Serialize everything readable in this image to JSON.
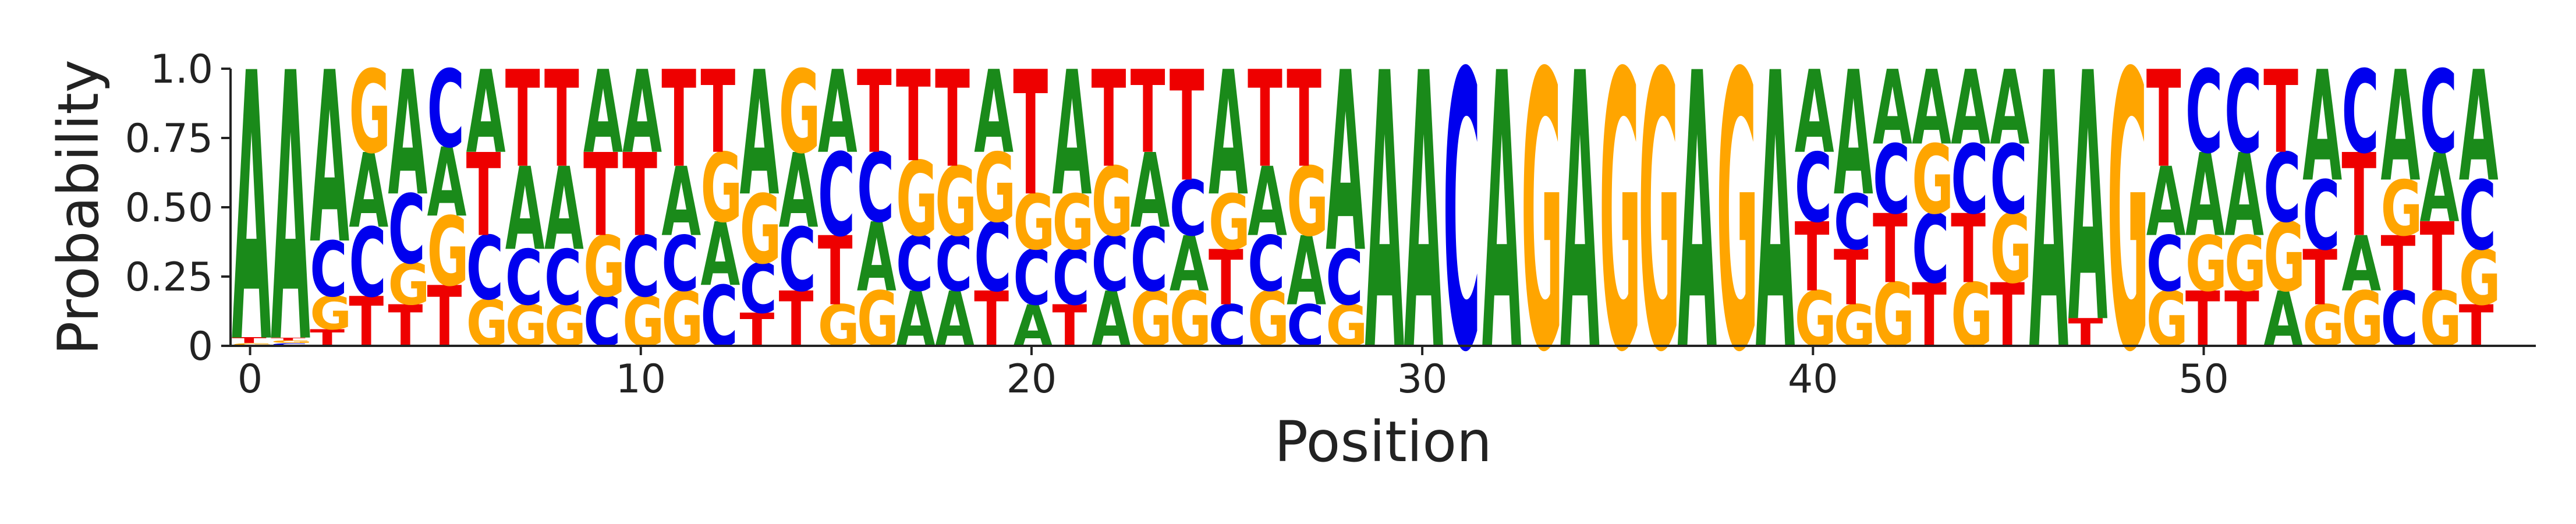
{
  "chart_data": {
    "type": "sequence_logo",
    "xlabel": "Position",
    "ylabel": "Probability",
    "ylim": [
      0,
      1
    ],
    "xlim": [
      -0.5,
      58.5
    ],
    "x_ticks": [
      0,
      10,
      20,
      30,
      40,
      50
    ],
    "y_ticks": [
      0,
      0.25,
      0.5,
      0.75,
      1.0
    ],
    "y_tick_labels": [
      "0",
      "0.25",
      "0.50",
      "0.75",
      "1.0"
    ],
    "colors": {
      "A": "#1a8a1a",
      "C": "#0000ee",
      "G": "#ffa500",
      "T": "#ee0000"
    },
    "positions": [
      {
        "x": 0,
        "probs": {
          "A": 0.97,
          "T": 0.02,
          "G": 0.01,
          "C": 0.0
        }
      },
      {
        "x": 1,
        "probs": {
          "A": 0.97,
          "C": 0.01,
          "G": 0.01,
          "T": 0.01
        }
      },
      {
        "x": 2,
        "probs": {
          "A": 0.62,
          "G": 0.12,
          "C": 0.2,
          "T": 0.06
        }
      },
      {
        "x": 3,
        "probs": {
          "A": 0.27,
          "T": 0.18,
          "G": 0.3,
          "C": 0.25
        }
      },
      {
        "x": 4,
        "probs": {
          "T": 0.15,
          "A": 0.45,
          "G": 0.15,
          "C": 0.25
        }
      },
      {
        "x": 5,
        "probs": {
          "G": 0.25,
          "T": 0.22,
          "C": 0.28,
          "A": 0.25
        }
      },
      {
        "x": 6,
        "probs": {
          "T": 0.3,
          "A": 0.3,
          "G": 0.17,
          "C": 0.23
        }
      },
      {
        "x": 7,
        "probs": {
          "T": 0.35,
          "A": 0.3,
          "C": 0.2,
          "G": 0.15
        }
      },
      {
        "x": 8,
        "probs": {
          "T": 0.35,
          "A": 0.3,
          "C": 0.2,
          "G": 0.15
        }
      },
      {
        "x": 9,
        "probs": {
          "T": 0.3,
          "A": 0.3,
          "G": 0.22,
          "C": 0.18
        }
      },
      {
        "x": 10,
        "probs": {
          "T": 0.3,
          "A": 0.3,
          "C": 0.22,
          "G": 0.18
        }
      },
      {
        "x": 11,
        "probs": {
          "T": 0.35,
          "A": 0.25,
          "G": 0.2,
          "C": 0.2
        }
      },
      {
        "x": 12,
        "probs": {
          "T": 0.3,
          "G": 0.25,
          "A": 0.23,
          "C": 0.22
        }
      },
      {
        "x": 13,
        "probs": {
          "A": 0.45,
          "G": 0.25,
          "T": 0.12,
          "C": 0.18
        }
      },
      {
        "x": 14,
        "probs": {
          "T": 0.2,
          "A": 0.27,
          "G": 0.3,
          "C": 0.23
        }
      },
      {
        "x": 15,
        "probs": {
          "C": 0.3,
          "A": 0.3,
          "G": 0.15,
          "T": 0.25
        }
      },
      {
        "x": 16,
        "probs": {
          "T": 0.3,
          "A": 0.25,
          "G": 0.2,
          "C": 0.25
        }
      },
      {
        "x": 17,
        "probs": {
          "T": 0.33,
          "G": 0.27,
          "A": 0.2,
          "C": 0.2
        }
      },
      {
        "x": 18,
        "probs": {
          "T": 0.35,
          "G": 0.25,
          "A": 0.2,
          "C": 0.2
        }
      },
      {
        "x": 19,
        "probs": {
          "A": 0.3,
          "T": 0.2,
          "C": 0.25,
          "G": 0.25
        }
      },
      {
        "x": 20,
        "probs": {
          "T": 0.45,
          "C": 0.2,
          "A": 0.15,
          "G": 0.2
        }
      },
      {
        "x": 21,
        "probs": {
          "A": 0.45,
          "T": 0.15,
          "C": 0.2,
          "G": 0.2
        }
      },
      {
        "x": 22,
        "probs": {
          "T": 0.35,
          "G": 0.25,
          "A": 0.2,
          "C": 0.2
        }
      },
      {
        "x": 23,
        "probs": {
          "T": 0.3,
          "A": 0.27,
          "C": 0.23,
          "G": 0.2
        }
      },
      {
        "x": 24,
        "probs": {
          "T": 0.4,
          "G": 0.2,
          "A": 0.2,
          "C": 0.2
        }
      },
      {
        "x": 25,
        "probs": {
          "A": 0.45,
          "T": 0.2,
          "G": 0.2,
          "C": 0.15
        }
      },
      {
        "x": 26,
        "probs": {
          "T": 0.35,
          "A": 0.25,
          "G": 0.2,
          "C": 0.2
        }
      },
      {
        "x": 27,
        "probs": {
          "T": 0.35,
          "A": 0.25,
          "G": 0.25,
          "C": 0.15
        }
      },
      {
        "x": 28,
        "probs": {
          "A": 0.65,
          "G": 0.15,
          "C": 0.2,
          "T": 0.0
        }
      },
      {
        "x": 29,
        "probs": {
          "A": 1.0,
          "C": 0.0,
          "G": 0.0,
          "T": 0.0
        }
      },
      {
        "x": 30,
        "probs": {
          "A": 1.0,
          "C": 0.0,
          "G": 0.0,
          "T": 0.0
        }
      },
      {
        "x": 31,
        "probs": {
          "C": 1.0,
          "A": 0.0,
          "G": 0.0,
          "T": 0.0
        }
      },
      {
        "x": 32,
        "probs": {
          "A": 1.0,
          "C": 0.0,
          "G": 0.0,
          "T": 0.0
        }
      },
      {
        "x": 33,
        "probs": {
          "G": 1.0,
          "A": 0.0,
          "C": 0.0,
          "T": 0.0
        }
      },
      {
        "x": 34,
        "probs": {
          "A": 1.0,
          "C": 0.0,
          "G": 0.0,
          "T": 0.0
        }
      },
      {
        "x": 35,
        "probs": {
          "G": 1.0,
          "A": 0.0,
          "C": 0.0,
          "T": 0.0
        }
      },
      {
        "x": 36,
        "probs": {
          "G": 1.0,
          "A": 0.0,
          "C": 0.0,
          "T": 0.0
        }
      },
      {
        "x": 37,
        "probs": {
          "A": 1.0,
          "C": 0.0,
          "G": 0.0,
          "T": 0.0
        }
      },
      {
        "x": 38,
        "probs": {
          "G": 1.0,
          "A": 0.0,
          "C": 0.0,
          "T": 0.0
        }
      },
      {
        "x": 39,
        "probs": {
          "A": 1.0,
          "C": 0.0,
          "G": 0.0,
          "T": 0.0
        }
      },
      {
        "x": 40,
        "probs": {
          "A": 0.3,
          "T": 0.25,
          "G": 0.2,
          "C": 0.25
        }
      },
      {
        "x": 41,
        "probs": {
          "A": 0.45,
          "T": 0.2,
          "C": 0.2,
          "G": 0.15
        }
      },
      {
        "x": 42,
        "probs": {
          "T": 0.25,
          "A": 0.27,
          "G": 0.23,
          "C": 0.25
        }
      },
      {
        "x": 43,
        "probs": {
          "A": 0.27,
          "C": 0.25,
          "T": 0.23,
          "G": 0.25
        }
      },
      {
        "x": 44,
        "probs": {
          "A": 0.27,
          "T": 0.25,
          "C": 0.25,
          "G": 0.23
        }
      },
      {
        "x": 45,
        "probs": {
          "A": 0.27,
          "T": 0.23,
          "G": 0.25,
          "C": 0.25
        }
      },
      {
        "x": 46,
        "probs": {
          "A": 1.0,
          "C": 0.0,
          "G": 0.0,
          "T": 0.0
        }
      },
      {
        "x": 47,
        "probs": {
          "T": 0.1,
          "A": 0.9,
          "C": 0.0,
          "G": 0.0
        }
      },
      {
        "x": 48,
        "probs": {
          "G": 1.0,
          "A": 0.0,
          "C": 0.0,
          "T": 0.0
        }
      },
      {
        "x": 49,
        "probs": {
          "T": 0.35,
          "A": 0.25,
          "G": 0.2,
          "C": 0.2
        }
      },
      {
        "x": 50,
        "probs": {
          "A": 0.3,
          "C": 0.3,
          "T": 0.2,
          "G": 0.2
        }
      },
      {
        "x": 51,
        "probs": {
          "A": 0.3,
          "C": 0.3,
          "T": 0.2,
          "G": 0.2
        }
      },
      {
        "x": 52,
        "probs": {
          "G": 0.25,
          "T": 0.3,
          "C": 0.25,
          "A": 0.2
        }
      },
      {
        "x": 53,
        "probs": {
          "A": 0.4,
          "C": 0.25,
          "T": 0.2,
          "G": 0.15
        }
      },
      {
        "x": 54,
        "probs": {
          "T": 0.3,
          "C": 0.3,
          "G": 0.2,
          "A": 0.2
        }
      },
      {
        "x": 55,
        "probs": {
          "A": 0.4,
          "C": 0.2,
          "T": 0.2,
          "G": 0.2
        }
      },
      {
        "x": 56,
        "probs": {
          "T": 0.25,
          "A": 0.25,
          "C": 0.3,
          "G": 0.2
        }
      },
      {
        "x": 57,
        "probs": {
          "A": 0.4,
          "C": 0.25,
          "T": 0.15,
          "G": 0.2
        }
      }
    ]
  }
}
